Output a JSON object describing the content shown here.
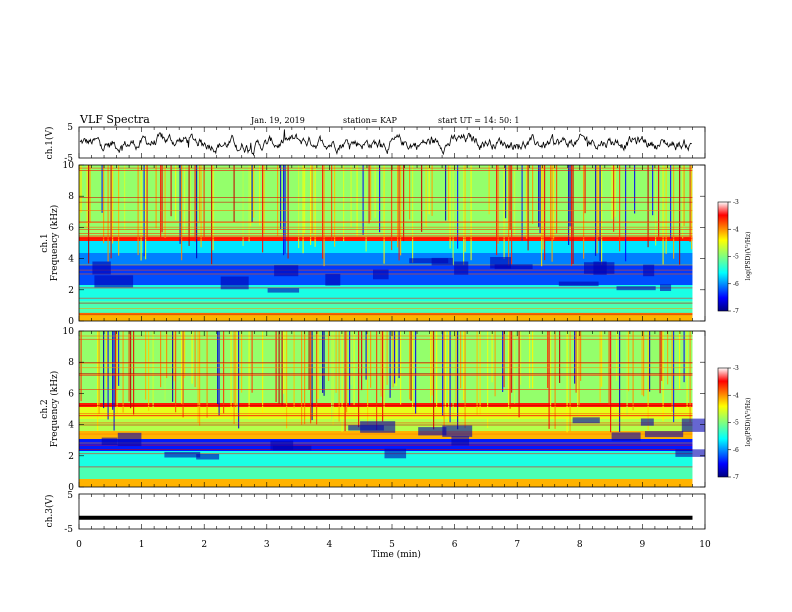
{
  "header": {
    "title": "VLF Spectra",
    "date": "Jan. 19, 2019",
    "station": "station= KAP",
    "start": "start  UT =   14: 50: 1"
  },
  "chart_data": [
    {
      "type": "line",
      "panel": "ch1-waveform",
      "ylabel": "ch.1(V)",
      "ylim": [
        -5,
        5
      ],
      "y_ticks": [
        "5",
        "-5"
      ],
      "xlim": [
        0,
        10
      ],
      "color": "#000000",
      "noise": true
    },
    {
      "type": "heatmap",
      "panel": "ch1-spectrogram",
      "ylabel_top": "ch.1",
      "ylabel": "Frequency (kHz)",
      "ylim": [
        0,
        10
      ],
      "y_ticks": [
        "0",
        "2",
        "4",
        "6",
        "8",
        "10"
      ],
      "xlim": [
        0,
        10
      ],
      "data_end_min": 9.8,
      "colorbar": {
        "label": "log(PSD)(V²/Hz)",
        "ticks": [
          "-3",
          "-4",
          "-5",
          "-6",
          "-7"
        ],
        "range": [
          -7,
          -3
        ]
      }
    },
    {
      "type": "heatmap",
      "panel": "ch2-spectrogram",
      "ylabel_top": "ch.2",
      "ylabel": "Frequency (kHz)",
      "ylim": [
        0,
        10
      ],
      "y_ticks": [
        "0",
        "2",
        "4",
        "6",
        "8",
        "10"
      ],
      "xlim": [
        0,
        10
      ],
      "data_end_min": 9.8,
      "colorbar": {
        "label": "log(PSD)(V²/Hz)",
        "ticks": [
          "-3",
          "-4",
          "-5",
          "-6",
          "-7"
        ],
        "range": [
          -7,
          -3
        ]
      }
    },
    {
      "type": "line",
      "panel": "ch3-waveform",
      "ylabel": "ch.3(V)",
      "ylim": [
        -5,
        5
      ],
      "y_ticks": [
        "5",
        "-5"
      ],
      "xlim": [
        0,
        10
      ],
      "constant_value": -1.8,
      "color": "#000000"
    }
  ],
  "x_axis": {
    "label": "Time (min)",
    "ticks": [
      "0",
      "1",
      "2",
      "3",
      "4",
      "5",
      "6",
      "7",
      "8",
      "9",
      "10"
    ]
  }
}
